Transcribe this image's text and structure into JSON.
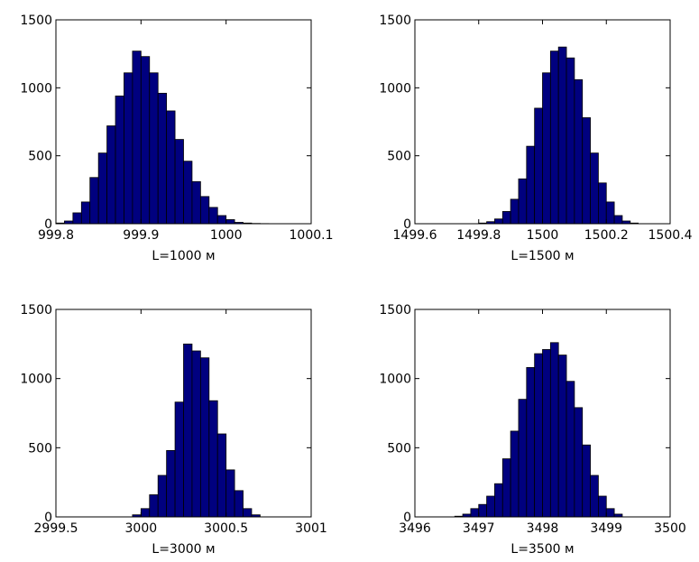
{
  "chart_data": [
    {
      "type": "bar",
      "xlabel": "L=1000 м",
      "ylabel": "",
      "xlim": [
        999.8,
        1000.1
      ],
      "ylim": [
        0,
        1500
      ],
      "xticks": [
        "999.8",
        "999.9",
        "1000",
        "1000.1"
      ],
      "yticks": [
        "0",
        "500",
        "1000",
        "1500"
      ],
      "bar_color": "#00007f",
      "bin_width": 0.01,
      "bin_centers": [
        999.805,
        999.815,
        999.825,
        999.835,
        999.845,
        999.855,
        999.865,
        999.875,
        999.885,
        999.895,
        999.905,
        999.915,
        999.925,
        999.935,
        999.945,
        999.955,
        999.965,
        999.975,
        999.985,
        999.995,
        1000.005,
        1000.015,
        1000.025,
        1000.035,
        1000.045,
        1000.055
      ],
      "counts": [
        5,
        20,
        80,
        160,
        340,
        520,
        720,
        940,
        1110,
        1270,
        1230,
        1110,
        960,
        830,
        620,
        460,
        310,
        200,
        120,
        60,
        30,
        10,
        5,
        2,
        1,
        0
      ]
    },
    {
      "type": "bar",
      "xlabel": "L=1500 м",
      "ylabel": "",
      "xlim": [
        1499.6,
        1500.4
      ],
      "ylim": [
        0,
        1500
      ],
      "xticks": [
        "1499.6",
        "1499.8",
        "1500",
        "1500.2",
        "1500.4"
      ],
      "yticks": [
        "0",
        "500",
        "1000",
        "1500"
      ],
      "bar_color": "#00007f",
      "bin_width": 0.025,
      "bin_centers": [
        1499.8125,
        1499.8375,
        1499.8625,
        1499.8875,
        1499.9125,
        1499.9375,
        1499.9625,
        1499.9875,
        1500.0125,
        1500.0375,
        1500.0625,
        1500.0875,
        1500.1125,
        1500.1375,
        1500.1625,
        1500.1875,
        1500.2125,
        1500.2375,
        1500.2625,
        1500.2875
      ],
      "counts": [
        5,
        15,
        35,
        90,
        180,
        330,
        570,
        850,
        1110,
        1270,
        1300,
        1220,
        1060,
        780,
        520,
        300,
        160,
        60,
        20,
        5
      ]
    },
    {
      "type": "bar",
      "xlabel": "L=3000 м",
      "ylabel": "",
      "xlim": [
        2999.5,
        3001
      ],
      "ylim": [
        0,
        1500
      ],
      "xticks": [
        "2999.5",
        "3000",
        "3000.5",
        "3001"
      ],
      "yticks": [
        "0",
        "500",
        "1000",
        "1500"
      ],
      "bar_color": "#00007f",
      "bin_width": 0.05,
      "bin_centers": [
        2999.975,
        3000.025,
        3000.075,
        3000.125,
        3000.175,
        3000.225,
        3000.275,
        3000.325,
        3000.375,
        3000.425,
        3000.475,
        3000.525,
        3000.575,
        3000.625,
        3000.675
      ],
      "counts": [
        15,
        60,
        160,
        300,
        480,
        830,
        1250,
        1200,
        1150,
        840,
        600,
        340,
        190,
        60,
        15
      ]
    },
    {
      "type": "bar",
      "xlabel": "L=3500 м",
      "ylabel": "",
      "xlim": [
        3496,
        3500
      ],
      "ylim": [
        0,
        1500
      ],
      "xticks": [
        "3496",
        "3497",
        "3498",
        "3499",
        "3500"
      ],
      "yticks": [
        "0",
        "500",
        "1000",
        "1500"
      ],
      "bar_color": "#00007f",
      "bin_width": 0.125,
      "bin_centers": [
        3496.6875,
        3496.8125,
        3496.9375,
        3497.0625,
        3497.1875,
        3497.3125,
        3497.4375,
        3497.5625,
        3497.6875,
        3497.8125,
        3497.9375,
        3498.0625,
        3498.1875,
        3498.3125,
        3498.4375,
        3498.5625,
        3498.6875,
        3498.8125,
        3498.9375,
        3499.0625,
        3499.1875
      ],
      "counts": [
        5,
        20,
        60,
        90,
        150,
        240,
        420,
        620,
        850,
        1080,
        1180,
        1210,
        1260,
        1170,
        980,
        790,
        520,
        300,
        150,
        60,
        20
      ]
    }
  ]
}
